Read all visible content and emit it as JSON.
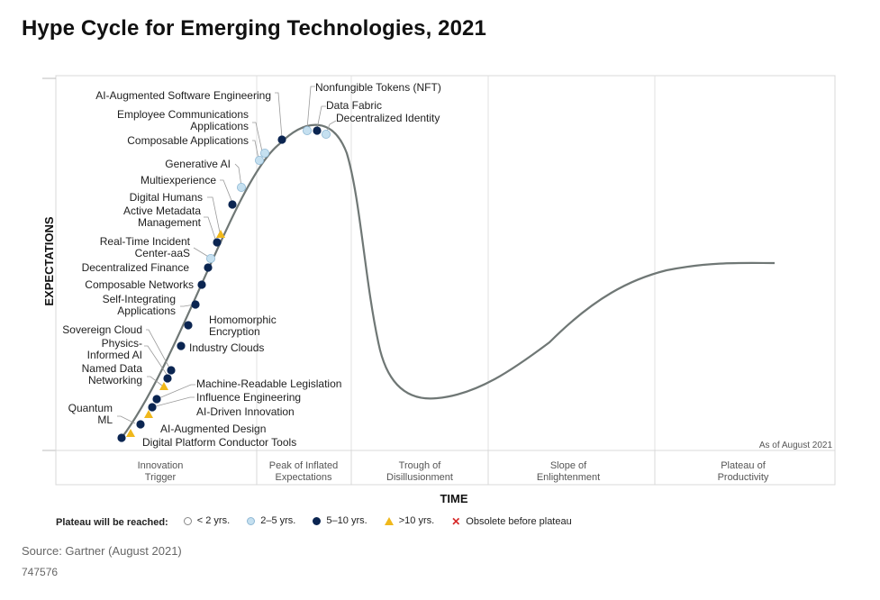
{
  "title": "Hype Cycle for Emerging Technologies, 2021",
  "y_axis_label": "EXPECTATIONS",
  "x_axis_label": "TIME",
  "as_of": "As of August 2021",
  "phases": [
    {
      "l1": "Innovation",
      "l2": "Trigger"
    },
    {
      "l1": "Peak of Inflated",
      "l2": "Expectations"
    },
    {
      "l1": "Trough of",
      "l2": "Disillusionment"
    },
    {
      "l1": "Slope of",
      "l2": "Enlightenment"
    },
    {
      "l1": "Plateau of",
      "l2": "Productivity"
    }
  ],
  "legend": {
    "title": "Plateau will be reached:",
    "items": [
      {
        "symbol": "circle-white",
        "label": "< 2 yrs."
      },
      {
        "symbol": "circle-light",
        "label": "2–5 yrs."
      },
      {
        "symbol": "circle-dark",
        "label": "5–10 yrs."
      },
      {
        "symbol": "triangle",
        "label": ">10 yrs."
      },
      {
        "symbol": "x-mark",
        "label": "Obsolete before plateau"
      }
    ]
  },
  "colors": {
    "dark": "#0b2551",
    "light": "#c5e0f0",
    "light_stroke": "#8fb8d4",
    "triangle": "#f0b81b",
    "curve": "#6f7775",
    "x_mark": "#d62828"
  },
  "technologies": [
    {
      "name": "Digital Platform Conductor Tools",
      "marker": "circle-dark"
    },
    {
      "name": "AI-Augmented Design",
      "marker": "triangle"
    },
    {
      "name": "Quantum ML",
      "marker": "circle-dark"
    },
    {
      "name": "AI-Driven Innovation",
      "marker": "circle-dark"
    },
    {
      "name": "Influence Engineering",
      "marker": "triangle"
    },
    {
      "name": "Machine-Readable Legislation",
      "marker": "circle-dark"
    },
    {
      "name": "Named Data Networking",
      "marker": "circle-dark"
    },
    {
      "name": "Physics-Informed AI",
      "marker": "triangle"
    },
    {
      "name": "Sovereign Cloud",
      "marker": "circle-dark"
    },
    {
      "name": "Industry Clouds",
      "marker": "circle-dark"
    },
    {
      "name": "Homomorphic Encryption",
      "marker": "circle-dark"
    },
    {
      "name": "Self-Integrating Applications",
      "marker": "circle-dark"
    },
    {
      "name": "Composable Networks",
      "marker": "circle-dark"
    },
    {
      "name": "Decentralized Finance",
      "marker": "circle-dark"
    },
    {
      "name": "Real-Time Incident Center-aaS",
      "marker": "circle-light"
    },
    {
      "name": "Active Metadata Management",
      "marker": "circle-dark"
    },
    {
      "name": "Digital Humans",
      "marker": "triangle"
    },
    {
      "name": "Multiexperience",
      "marker": "circle-dark"
    },
    {
      "name": "Generative AI",
      "marker": "circle-light"
    },
    {
      "name": "Composable Applications",
      "marker": "circle-light"
    },
    {
      "name": "Employee Communications Applications",
      "marker": "circle-light"
    },
    {
      "name": "AI-Augmented Software Engineering",
      "marker": "circle-dark"
    },
    {
      "name": "Nonfungible Tokens (NFT)",
      "marker": "circle-light"
    },
    {
      "name": "Data Fabric",
      "marker": "circle-dark"
    },
    {
      "name": "Decentralized Identity",
      "marker": "circle-light"
    }
  ],
  "source": "Source: Gartner (August 2021)",
  "doc_id": "747576"
}
